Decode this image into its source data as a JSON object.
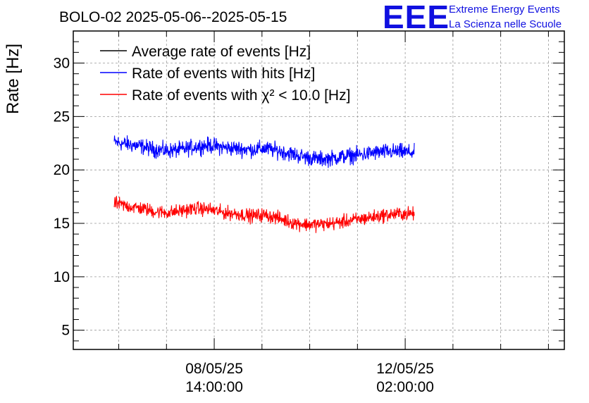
{
  "chart_data": {
    "type": "line",
    "title": "BOLO-02 2025-05-06--2025-05-15",
    "xlabel": "",
    "ylabel": "Rate [Hz]",
    "ylim": [
      3.2,
      33.0
    ],
    "xlim": [
      "2025-05-06 00:00:00",
      "2025-05-15 00:00:00"
    ],
    "y_ticks": [
      5,
      10,
      15,
      20,
      25,
      30
    ],
    "x_ticks": [
      {
        "date": "08/05/25",
        "time": "14:00:00",
        "value": "2025-05-08 14:00:00"
      },
      {
        "date": "12/05/25",
        "time": "02:00:00",
        "value": "2025-05-12 02:00:00"
      }
    ],
    "grid": true,
    "legend_position": "top-left",
    "series": [
      {
        "name": "Average rate of events [Hz]",
        "color": "#000000",
        "points": []
      },
      {
        "name": "Rate of events with hits [Hz]",
        "color": "#0000ff",
        "points": [
          [
            "2025-05-06 18:00:00",
            22.6
          ],
          [
            "2025-05-07 00:00:00",
            22.4
          ],
          [
            "2025-05-07 06:00:00",
            22.2
          ],
          [
            "2025-05-07 12:00:00",
            21.9
          ],
          [
            "2025-05-07 18:00:00",
            21.8
          ],
          [
            "2025-05-08 00:00:00",
            21.9
          ],
          [
            "2025-05-08 06:00:00",
            22.2
          ],
          [
            "2025-05-08 12:00:00",
            22.3
          ],
          [
            "2025-05-08 18:00:00",
            22.1
          ],
          [
            "2025-05-09 00:00:00",
            22.0
          ],
          [
            "2025-05-09 06:00:00",
            21.9
          ],
          [
            "2025-05-09 12:00:00",
            22.0
          ],
          [
            "2025-05-09 18:00:00",
            21.8
          ],
          [
            "2025-05-10 00:00:00",
            21.5
          ],
          [
            "2025-05-10 06:00:00",
            21.2
          ],
          [
            "2025-05-10 12:00:00",
            21.0
          ],
          [
            "2025-05-10 18:00:00",
            21.1
          ],
          [
            "2025-05-11 00:00:00",
            21.3
          ],
          [
            "2025-05-11 06:00:00",
            21.4
          ],
          [
            "2025-05-11 12:00:00",
            21.6
          ],
          [
            "2025-05-11 18:00:00",
            21.7
          ],
          [
            "2025-05-12 00:00:00",
            21.7
          ],
          [
            "2025-05-12 06:00:00",
            21.6
          ]
        ],
        "fluctuation_halfwidth": 1.1
      },
      {
        "name": "Rate of events with χ² < 10.0 [Hz]",
        "color": "#ff0000",
        "points": [
          [
            "2025-05-06 18:00:00",
            16.9
          ],
          [
            "2025-05-07 00:00:00",
            16.6
          ],
          [
            "2025-05-07 06:00:00",
            16.4
          ],
          [
            "2025-05-07 12:00:00",
            16.1
          ],
          [
            "2025-05-07 18:00:00",
            16.0
          ],
          [
            "2025-05-08 00:00:00",
            16.2
          ],
          [
            "2025-05-08 06:00:00",
            16.4
          ],
          [
            "2025-05-08 12:00:00",
            16.3
          ],
          [
            "2025-05-08 18:00:00",
            16.0
          ],
          [
            "2025-05-09 00:00:00",
            15.9
          ],
          [
            "2025-05-09 06:00:00",
            15.7
          ],
          [
            "2025-05-09 12:00:00",
            15.8
          ],
          [
            "2025-05-09 18:00:00",
            15.5
          ],
          [
            "2025-05-10 00:00:00",
            15.1
          ],
          [
            "2025-05-10 06:00:00",
            14.9
          ],
          [
            "2025-05-10 12:00:00",
            14.9
          ],
          [
            "2025-05-10 18:00:00",
            15.0
          ],
          [
            "2025-05-11 00:00:00",
            15.2
          ],
          [
            "2025-05-11 06:00:00",
            15.4
          ],
          [
            "2025-05-11 12:00:00",
            15.6
          ],
          [
            "2025-05-11 18:00:00",
            15.8
          ],
          [
            "2025-05-12 00:00:00",
            15.9
          ],
          [
            "2025-05-12 06:00:00",
            15.9
          ]
        ],
        "fluctuation_halfwidth": 0.95
      }
    ]
  },
  "logo": {
    "mark": "EEE",
    "line1": "Extreme Energy Events",
    "line2": "La Scienza nelle Scuole",
    "color": "#1010e0"
  }
}
